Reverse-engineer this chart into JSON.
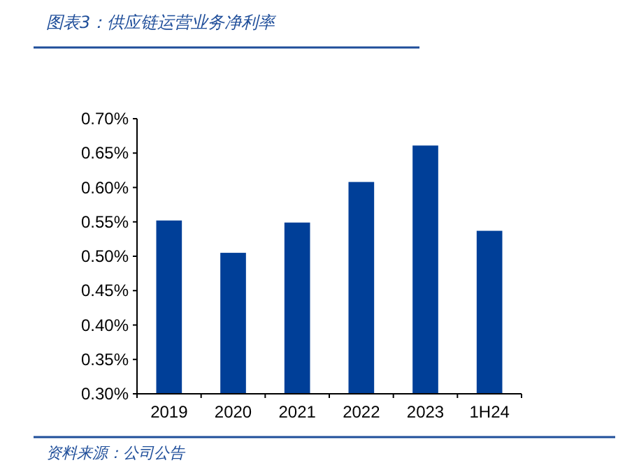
{
  "chart_data": {
    "type": "bar",
    "title": "图表3：供应链运营业务净利率",
    "categories": [
      "2019",
      "2020",
      "2021",
      "2022",
      "2023",
      "1H24"
    ],
    "values": [
      0.552,
      0.505,
      0.549,
      0.608,
      0.661,
      0.537
    ],
    "color": "#003f98",
    "ylim": [
      0.3,
      0.7
    ],
    "yticks": [
      {
        "value": 0.3,
        "label": "0.30%"
      },
      {
        "value": 0.35,
        "label": "0.35%"
      },
      {
        "value": 0.4,
        "label": "0.40%"
      },
      {
        "value": 0.45,
        "label": "0.45%"
      },
      {
        "value": 0.5,
        "label": "0.50%"
      },
      {
        "value": 0.55,
        "label": "0.55%"
      },
      {
        "value": 0.6,
        "label": "0.60%"
      },
      {
        "value": 0.65,
        "label": "0.65%"
      },
      {
        "value": 0.7,
        "label": "0.70%"
      }
    ],
    "grid": false,
    "annotations": [
      "资料来源：公司公告"
    ]
  }
}
